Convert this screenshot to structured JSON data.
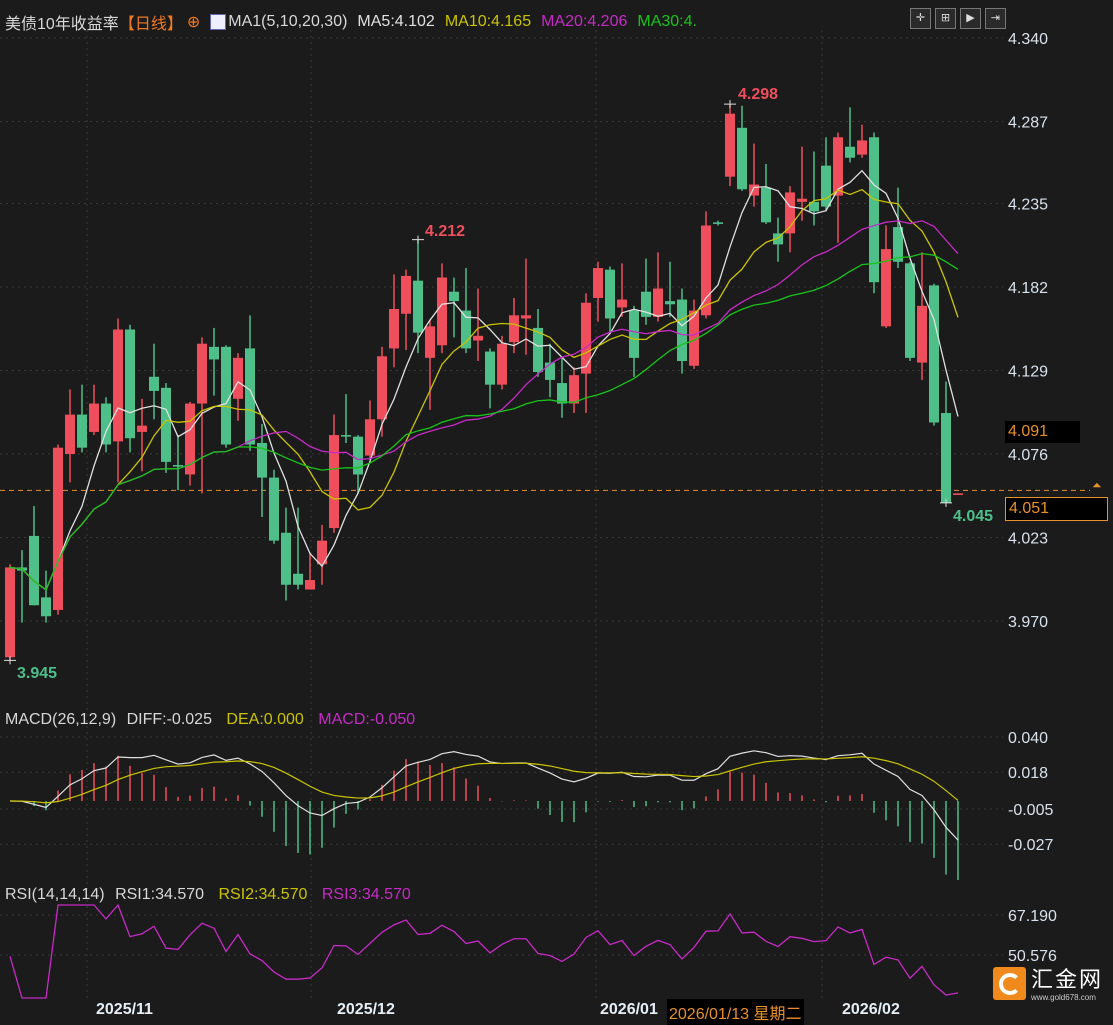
{
  "header": {
    "title": "美债10年收益率",
    "period": "【日线】",
    "ma_label": "MA1(5,10,20,30)",
    "ma5": "MA5:4.102",
    "ma10": "MA10:4.165",
    "ma20": "MA20:4.206",
    "ma30": "MA30:4.",
    "toolbar": [
      "✛",
      "⊞",
      "▶",
      "⇥"
    ]
  },
  "macd": {
    "label": "MACD(26,12,9)",
    "diff": "DIFF:-0.025",
    "dea": "DEA:0.000",
    "macd": "MACD:-0.050",
    "ticks": [
      "0.040",
      "0.018",
      "-0.005",
      "-0.027"
    ]
  },
  "rsi": {
    "label": "RSI(14,14,14)",
    "rsi1": "RSI1:34.570",
    "rsi2": "RSI2:34.570",
    "rsi3": "RSI3:34.570",
    "ticks": [
      "67.190",
      "50.576"
    ]
  },
  "price_boxes": {
    "crosshair": "4.091",
    "last": "4.051"
  },
  "annotations": {
    "high1": "4.298",
    "high2": "4.212",
    "low1": "3.945",
    "low2": "4.045"
  },
  "dates": {
    "d1": "2025/11",
    "d2": "2025/12",
    "d3": "2026/01",
    "d4": "2026/02",
    "tooltip": "2026/01/13 星期二"
  },
  "logo": {
    "name": "汇金网",
    "url_text": "www.gold678.com"
  },
  "colors": {
    "up": "#ef4f5d",
    "down": "#4fbf8a",
    "ma5": "#e0e0e0",
    "ma10": "#c9c400",
    "ma20": "#c72ac7",
    "ma30": "#18c418",
    "accent": "#e8902a"
  },
  "chart_data": {
    "type": "candlestick",
    "title": "美债10年收益率",
    "ylim": [
      3.97,
      4.34
    ],
    "yticks": [
      4.34,
      4.287,
      4.235,
      4.182,
      4.129,
      4.076,
      4.023,
      3.97
    ],
    "grid": true,
    "ma_periods": [
      5,
      10,
      20,
      30
    ],
    "last_price": 4.051,
    "candles_ohlc": [
      [
        3.947,
        4.006,
        3.945,
        4.004
      ],
      [
        4.004,
        4.015,
        3.969,
        4.002
      ],
      [
        4.024,
        4.043,
        3.98,
        3.98
      ],
      [
        3.985,
        4.002,
        3.969,
        3.973
      ],
      [
        3.977,
        4.082,
        3.974,
        4.08
      ],
      [
        4.076,
        4.117,
        4.058,
        4.101
      ],
      [
        4.101,
        4.12,
        4.077,
        4.08
      ],
      [
        4.09,
        4.12,
        4.088,
        4.108
      ],
      [
        4.108,
        4.112,
        4.077,
        4.082
      ],
      [
        4.084,
        4.162,
        4.058,
        4.155
      ],
      [
        4.155,
        4.158,
        4.077,
        4.086
      ],
      [
        4.09,
        4.111,
        4.065,
        4.094
      ],
      [
        4.125,
        4.146,
        4.098,
        4.116
      ],
      [
        4.118,
        4.121,
        4.064,
        4.071
      ],
      [
        4.069,
        4.088,
        4.053,
        4.068
      ],
      [
        4.063,
        4.109,
        4.056,
        4.108
      ],
      [
        4.108,
        4.15,
        4.051,
        4.146
      ],
      [
        4.144,
        4.156,
        4.113,
        4.136
      ],
      [
        4.144,
        4.145,
        4.08,
        4.082
      ],
      [
        4.111,
        4.14,
        4.097,
        4.137
      ],
      [
        4.143,
        4.164,
        4.078,
        4.082
      ],
      [
        4.083,
        4.095,
        4.036,
        4.061
      ],
      [
        4.061,
        4.066,
        4.019,
        4.021
      ],
      [
        4.026,
        4.042,
        3.983,
        3.993
      ],
      [
        4.0,
        4.042,
        3.99,
        3.993
      ],
      [
        3.99,
        4.013,
        3.99,
        3.996
      ],
      [
        4.006,
        4.031,
        3.993,
        4.021
      ],
      [
        4.029,
        4.101,
        4.026,
        4.088
      ],
      [
        4.088,
        4.114,
        4.083,
        4.087
      ],
      [
        4.087,
        4.088,
        4.051,
        4.063
      ],
      [
        4.075,
        4.11,
        4.072,
        4.098
      ],
      [
        4.098,
        4.144,
        4.087,
        4.138
      ],
      [
        4.143,
        4.19,
        4.131,
        4.168
      ],
      [
        4.165,
        4.193,
        4.142,
        4.189
      ],
      [
        4.186,
        4.212,
        4.14,
        4.153
      ],
      [
        4.137,
        4.161,
        4.104,
        4.157
      ],
      [
        4.145,
        4.197,
        4.14,
        4.188
      ],
      [
        4.179,
        4.188,
        4.15,
        4.173
      ],
      [
        4.167,
        4.194,
        4.14,
        4.143
      ],
      [
        4.148,
        4.181,
        4.135,
        4.151
      ],
      [
        4.141,
        4.143,
        4.105,
        4.12
      ],
      [
        4.12,
        4.151,
        4.117,
        4.146
      ],
      [
        4.147,
        4.175,
        4.14,
        4.164
      ],
      [
        4.162,
        4.2,
        4.139,
        4.164
      ],
      [
        4.156,
        4.168,
        4.125,
        4.128
      ],
      [
        4.134,
        4.146,
        4.112,
        4.123
      ],
      [
        4.121,
        4.137,
        4.099,
        4.108
      ],
      [
        4.108,
        4.131,
        4.102,
        4.126
      ],
      [
        4.127,
        4.178,
        4.102,
        4.172
      ],
      [
        4.175,
        4.198,
        4.16,
        4.194
      ],
      [
        4.193,
        4.195,
        4.153,
        4.162
      ],
      [
        4.169,
        4.197,
        4.163,
        4.174
      ],
      [
        4.167,
        4.17,
        4.125,
        4.137
      ],
      [
        4.179,
        4.2,
        4.158,
        4.163
      ],
      [
        4.163,
        4.204,
        4.16,
        4.181
      ],
      [
        4.173,
        4.198,
        4.163,
        4.171
      ],
      [
        4.174,
        4.181,
        4.127,
        4.135
      ],
      [
        4.132,
        4.174,
        4.13,
        4.167
      ],
      [
        4.164,
        4.23,
        4.162,
        4.221
      ],
      [
        4.223,
        4.224,
        4.221,
        4.222
      ],
      [
        4.252,
        4.298,
        4.246,
        4.292
      ],
      [
        4.283,
        4.297,
        4.243,
        4.244
      ],
      [
        4.24,
        4.273,
        4.233,
        4.247
      ],
      [
        4.245,
        4.26,
        4.222,
        4.223
      ],
      [
        4.216,
        4.226,
        4.198,
        4.209
      ],
      [
        4.216,
        4.246,
        4.204,
        4.242
      ],
      [
        4.236,
        4.271,
        4.224,
        4.238
      ],
      [
        4.236,
        4.268,
        4.221,
        4.23
      ],
      [
        4.259,
        4.277,
        4.23,
        4.233
      ],
      [
        4.24,
        4.28,
        4.21,
        4.277
      ],
      [
        4.271,
        4.296,
        4.261,
        4.264
      ],
      [
        4.266,
        4.285,
        4.264,
        4.275
      ],
      [
        4.277,
        4.28,
        4.178,
        4.185
      ],
      [
        4.157,
        4.221,
        4.156,
        4.206
      ],
      [
        4.22,
        4.245,
        4.194,
        4.198
      ],
      [
        4.197,
        4.198,
        4.135,
        4.137
      ],
      [
        4.134,
        4.204,
        4.123,
        4.17
      ],
      [
        4.183,
        4.184,
        4.094,
        4.096
      ],
      [
        4.102,
        4.122,
        4.045,
        4.045
      ],
      [
        4.05,
        4.051,
        4.05,
        4.051
      ]
    ],
    "macd_ylim": [
      -0.04,
      0.045
    ],
    "rsi_ylim": [
      30,
      75
    ]
  }
}
